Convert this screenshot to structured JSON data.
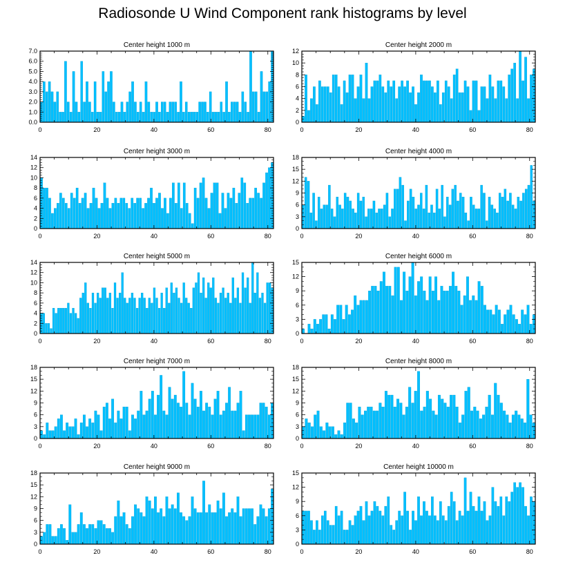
{
  "title": "Radiosonde U Wind Component rank histograms by level",
  "colors": {
    "bar": "#00bfff",
    "bar_edge": "#0099cc",
    "axis": "#000000"
  },
  "chart_data": [
    {
      "type": "bar",
      "title": "Center height 1000 m",
      "xlim": [
        0,
        82
      ],
      "ylim": [
        0,
        7
      ],
      "xticks": [
        "0",
        "20",
        "40",
        "60",
        "80"
      ],
      "yticks": [
        "0.0",
        "1.0",
        "2.0",
        "3.0",
        "4.0",
        "5.0",
        "6.0",
        "7.0"
      ],
      "values": [
        2,
        4,
        3,
        4,
        3,
        2,
        3,
        1,
        1,
        6,
        2,
        1,
        5,
        2,
        1,
        6,
        2,
        4,
        2,
        1,
        4,
        1,
        1,
        5,
        3,
        4,
        5,
        2,
        1,
        1,
        2,
        1,
        2,
        3,
        4,
        2,
        1,
        2,
        1,
        4,
        2,
        1,
        1,
        2,
        1,
        2,
        2,
        1,
        2,
        2,
        2,
        1,
        4,
        1,
        2,
        1,
        1,
        1,
        1,
        2,
        2,
        2,
        1,
        3,
        1,
        1,
        1,
        2,
        1,
        4,
        1,
        2,
        2,
        2,
        1,
        3,
        2,
        1,
        7,
        3,
        3,
        1,
        5,
        3,
        3,
        4,
        7
      ]
    },
    {
      "type": "bar",
      "title": "Center height 2000 m",
      "xlim": [
        0,
        82
      ],
      "ylim": [
        0,
        12
      ],
      "xticks": [
        "0",
        "20",
        "40",
        "60",
        "80"
      ],
      "yticks": [
        "0",
        "2",
        "4",
        "6",
        "8",
        "10",
        "12"
      ],
      "values": [
        1,
        8,
        2,
        4,
        6,
        3,
        7,
        6,
        6,
        6,
        5,
        8,
        8,
        6,
        3,
        7,
        5,
        8,
        8,
        4,
        6,
        8,
        4,
        10,
        4,
        6,
        7,
        7,
        8,
        6,
        5,
        7,
        6,
        7,
        4,
        6,
        7,
        6,
        7,
        5,
        6,
        3,
        5,
        8,
        7,
        7,
        7,
        6,
        5,
        7,
        3,
        5,
        7,
        6,
        4,
        8,
        9,
        5,
        5,
        7,
        6,
        2,
        7,
        7,
        2,
        6,
        6,
        4,
        8,
        6,
        4,
        7,
        7,
        6,
        4,
        8,
        9,
        10,
        4,
        12,
        7,
        11,
        4,
        8,
        9
      ]
    },
    {
      "type": "bar",
      "title": "Center height 3000 m",
      "xlim": [
        0,
        82
      ],
      "ylim": [
        0,
        14
      ],
      "xticks": [
        "0",
        "20",
        "40",
        "60",
        "80"
      ],
      "yticks": [
        "0",
        "2",
        "4",
        "6",
        "8",
        "10",
        "12",
        "14"
      ],
      "values": [
        10,
        8,
        8,
        6,
        3,
        4,
        5,
        7,
        6,
        5,
        4,
        7,
        6,
        8,
        5,
        6,
        7,
        4,
        5,
        8,
        6,
        4,
        5,
        9,
        6,
        4,
        5,
        6,
        5,
        6,
        6,
        5,
        4,
        6,
        5,
        6,
        6,
        4,
        5,
        6,
        8,
        5,
        6,
        7,
        4,
        6,
        3,
        6,
        9,
        5,
        9,
        4,
        9,
        5,
        3,
        1,
        8,
        6,
        9,
        10,
        6,
        4,
        7,
        9,
        9,
        3,
        7,
        4,
        7,
        6,
        8,
        5,
        7,
        10,
        9,
        5,
        6,
        6,
        8,
        7,
        6,
        9,
        11,
        12,
        13
      ]
    },
    {
      "type": "bar",
      "title": "Center height 4000 m",
      "xlim": [
        0,
        82
      ],
      "ylim": [
        0,
        18
      ],
      "xticks": [
        "0",
        "20",
        "40",
        "60",
        "80"
      ],
      "yticks": [
        "0",
        "3",
        "6",
        "9",
        "12",
        "15",
        "18"
      ],
      "values": [
        6,
        13,
        12,
        4,
        9,
        2,
        8,
        5,
        6,
        6,
        11,
        5,
        3,
        8,
        6,
        5,
        9,
        8,
        7,
        5,
        4,
        9,
        7,
        8,
        3,
        5,
        5,
        7,
        4,
        5,
        5,
        6,
        9,
        3,
        5,
        10,
        10,
        13,
        11,
        2,
        7,
        10,
        8,
        5,
        6,
        9,
        5,
        11,
        4,
        6,
        4,
        10,
        5,
        11,
        3,
        8,
        6,
        10,
        11,
        7,
        9,
        8,
        4,
        2,
        8,
        6,
        5,
        5,
        11,
        9,
        2,
        8,
        6,
        5,
        4,
        9,
        8,
        10,
        7,
        9,
        6,
        5,
        8,
        7,
        9,
        10,
        11,
        16,
        7
      ]
    },
    {
      "type": "bar",
      "title": "Center height 5000 m",
      "xlim": [
        0,
        82
      ],
      "ylim": [
        0,
        14
      ],
      "xticks": [
        "0",
        "20",
        "40",
        "60",
        "80"
      ],
      "yticks": [
        "0",
        "2",
        "4",
        "6",
        "8",
        "10",
        "12",
        "14"
      ],
      "values": [
        4,
        4,
        2,
        2,
        1,
        5,
        4,
        5,
        5,
        5,
        5,
        6,
        4,
        5,
        4,
        3,
        7,
        8,
        10,
        6,
        5,
        8,
        6,
        8,
        7,
        9,
        9,
        7,
        8,
        5,
        10,
        7,
        8,
        12,
        7,
        6,
        7,
        8,
        7,
        5,
        7,
        8,
        7,
        5,
        7,
        6,
        9,
        7,
        5,
        8,
        5,
        9,
        6,
        10,
        8,
        9,
        7,
        6,
        10,
        7,
        6,
        5,
        9,
        10,
        12,
        8,
        11,
        7,
        10,
        9,
        11,
        7,
        6,
        8,
        9,
        7,
        8,
        6,
        11,
        7,
        9,
        6,
        12,
        9,
        11,
        6,
        14,
        8,
        12,
        7,
        8,
        6,
        10,
        10,
        9
      ]
    },
    {
      "type": "bar",
      "title": "Center height 6000 m",
      "xlim": [
        0,
        82
      ],
      "ylim": [
        0,
        15
      ],
      "xticks": [
        "0",
        "20",
        "40",
        "60",
        "80"
      ],
      "yticks": [
        "0",
        "3",
        "6",
        "9",
        "12",
        "15"
      ],
      "values": [
        1,
        0,
        2,
        1,
        3,
        2,
        3,
        4,
        4,
        1,
        4,
        3,
        6,
        6,
        3,
        6,
        4,
        5,
        8,
        6,
        7,
        7,
        7,
        9,
        10,
        10,
        9,
        11,
        13,
        10,
        10,
        8,
        14,
        14,
        7,
        13,
        9,
        12,
        15,
        8,
        11,
        12,
        9,
        7,
        12,
        9,
        12,
        7,
        10,
        9,
        9,
        10,
        13,
        10,
        9,
        6,
        8,
        12,
        7,
        8,
        7,
        11,
        10,
        6,
        5,
        5,
        4,
        6,
        5,
        2,
        4,
        5,
        6,
        4,
        3,
        2,
        5,
        4,
        6,
        2,
        4
      ]
    },
    {
      "type": "bar",
      "title": "Center height 7000 m",
      "xlim": [
        0,
        82
      ],
      "ylim": [
        0,
        18
      ],
      "xticks": [
        "0",
        "20",
        "40",
        "60",
        "80"
      ],
      "yticks": [
        "0",
        "3",
        "6",
        "9",
        "12",
        "15",
        "18"
      ],
      "values": [
        2,
        1,
        4,
        2,
        2,
        3,
        5,
        6,
        2,
        4,
        3,
        3,
        5,
        1,
        4,
        6,
        3,
        5,
        4,
        7,
        6,
        2,
        8,
        9,
        5,
        10,
        4,
        7,
        5,
        8,
        8,
        2,
        6,
        5,
        7,
        12,
        6,
        7,
        10,
        12,
        6,
        11,
        16,
        7,
        6,
        13,
        10,
        11,
        9,
        8,
        17,
        9,
        6,
        14,
        10,
        8,
        12,
        7,
        9,
        8,
        6,
        10,
        12,
        6,
        7,
        9,
        13,
        7,
        7,
        9,
        12,
        2,
        6,
        6,
        6,
        6,
        6,
        9,
        9,
        8,
        6,
        9
      ]
    },
    {
      "type": "bar",
      "title": "Center height 8000 m",
      "xlim": [
        0,
        82
      ],
      "ylim": [
        0,
        18
      ],
      "xticks": [
        "0",
        "20",
        "40",
        "60",
        "80"
      ],
      "yticks": [
        "0",
        "3",
        "6",
        "9",
        "12",
        "15",
        "18"
      ],
      "values": [
        3,
        5,
        4,
        3,
        6,
        7,
        3,
        2,
        4,
        3,
        3,
        1,
        2,
        1,
        4,
        9,
        9,
        5,
        4,
        8,
        6,
        7,
        8,
        8,
        7,
        7,
        9,
        8,
        12,
        11,
        11,
        8,
        10,
        9,
        6,
        8,
        13,
        9,
        12,
        17,
        7,
        8,
        12,
        10,
        7,
        6,
        11,
        10,
        9,
        8,
        11,
        11,
        8,
        4,
        6,
        12,
        13,
        7,
        8,
        7,
        5,
        6,
        8,
        11,
        6,
        14,
        11,
        9,
        7,
        6,
        4,
        6,
        7,
        6,
        5,
        4,
        15,
        6,
        4
      ]
    },
    {
      "type": "bar",
      "title": "Center height 9000 m",
      "xlim": [
        0,
        82
      ],
      "ylim": [
        0,
        18
      ],
      "xticks": [
        "0",
        "20",
        "40",
        "60",
        "80"
      ],
      "yticks": [
        "0",
        "3",
        "6",
        "9",
        "12",
        "15",
        "18"
      ],
      "values": [
        2,
        3,
        5,
        5,
        2,
        2,
        4,
        5,
        4,
        1,
        10,
        3,
        3,
        5,
        8,
        5,
        4,
        5,
        5,
        4,
        6,
        6,
        5,
        4,
        4,
        3,
        7,
        11,
        7,
        8,
        5,
        4,
        7,
        10,
        9,
        8,
        7,
        12,
        11,
        9,
        12,
        8,
        9,
        7,
        12,
        9,
        10,
        9,
        13,
        8,
        7,
        6,
        7,
        12,
        9,
        8,
        8,
        16,
        8,
        10,
        8,
        8,
        11,
        9,
        13,
        7,
        8,
        9,
        8,
        12,
        7,
        9,
        9,
        9,
        9,
        5,
        7,
        10,
        9,
        7,
        9,
        14
      ]
    },
    {
      "type": "bar",
      "title": "Center height 10000 m",
      "xlim": [
        0,
        82
      ],
      "ylim": [
        0,
        15
      ],
      "xticks": [
        "0",
        "20",
        "40",
        "60",
        "80"
      ],
      "yticks": [
        "0",
        "3",
        "6",
        "9",
        "12",
        "15"
      ],
      "values": [
        7,
        7,
        7,
        5,
        3,
        5,
        3,
        6,
        7,
        5,
        4,
        4,
        8,
        6,
        7,
        3,
        3,
        5,
        4,
        6,
        7,
        8,
        5,
        9,
        6,
        7,
        9,
        8,
        7,
        6,
        8,
        10,
        4,
        3,
        5,
        7,
        6,
        11,
        7,
        3,
        7,
        5,
        10,
        6,
        9,
        7,
        6,
        10,
        6,
        5,
        9,
        6,
        5,
        8,
        11,
        9,
        5,
        7,
        6,
        14,
        7,
        11,
        8,
        7,
        10,
        7,
        9,
        5,
        6,
        12,
        9,
        8,
        10,
        6,
        10,
        9,
        11,
        13,
        12,
        13,
        12,
        8,
        6,
        10,
        9
      ]
    }
  ]
}
